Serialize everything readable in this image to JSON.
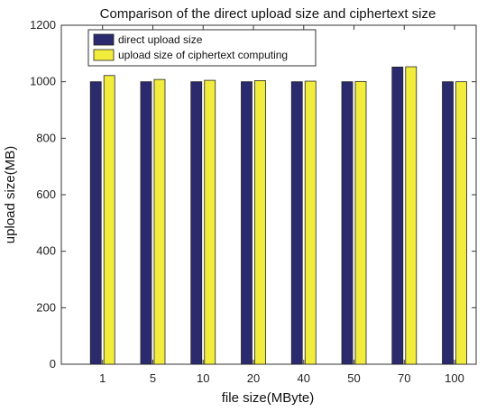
{
  "chart_data": {
    "type": "bar",
    "title": "Comparison of the direct upload size and ciphertext size",
    "xlabel": "file size(MByte)",
    "ylabel": "upload size(MB)",
    "categories": [
      "1",
      "5",
      "10",
      "20",
      "40",
      "50",
      "70",
      "100"
    ],
    "series": [
      {
        "name": "direct upload size",
        "color": "#2b2a6e",
        "values": [
          1000,
          1000,
          1000,
          1000,
          1000,
          1000,
          1052,
          1000
        ]
      },
      {
        "name": "upload size of ciphertext computing",
        "color": "#f2ec3c",
        "values": [
          1022,
          1008,
          1005,
          1004,
          1002,
          1001,
          1053,
          1000
        ]
      }
    ],
    "ylim": [
      0,
      1200
    ],
    "yticks": [
      0,
      200,
      400,
      600,
      800,
      1000,
      1200
    ],
    "legend_position": "top-left",
    "grid": false
  }
}
